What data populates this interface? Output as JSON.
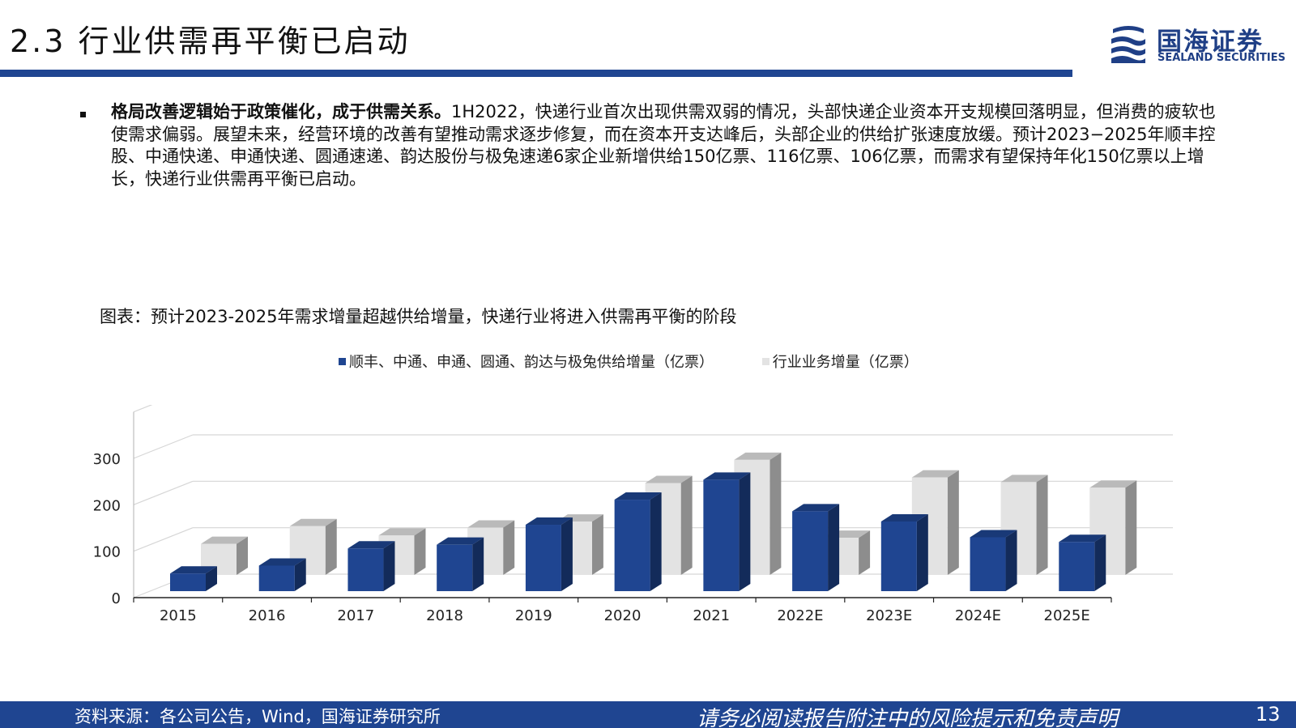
{
  "header": {
    "title": "2.3 行业供需再平衡已启动",
    "logo_cn": "国海证券",
    "logo_en": "SEALAND SECURITIES"
  },
  "bullet": {
    "bold": "格局改善逻辑始于政策催化，成于供需关系。",
    "text": "1H2022，快递行业首次出现供需双弱的情况，头部快递企业资本开支规模回落明显，但消费的疲软也使需求偏弱。展望未来，经营环境的改善有望推动需求逐步修复，而在资本开支达峰后，头部企业的供给扩张速度放缓。预计2023−2025年顺丰控股、中通快递、申通快递、圆通速递、韵达股份与极兔速递6家企业新增供给150亿票、116亿票、106亿票，而需求有望保持年化150亿票以上增长，快递行业供需再平衡已启动。"
  },
  "chart_caption": "图表：预计2023-2025年需求增量超越供给增量，快递行业将进入供需再平衡的阶段",
  "chart_data": {
    "type": "bar",
    "categories": [
      "2015",
      "2016",
      "2017",
      "2018",
      "2019",
      "2020",
      "2021",
      "2022E",
      "2023E",
      "2024E",
      "2025E"
    ],
    "series": [
      {
        "name": "顺丰、中通、申通、圆通、韵达与极兔供给增量（亿票）",
        "values": [
          38,
          55,
          92,
          100,
          143,
          197,
          240,
          172,
          150,
          116,
          106
        ],
        "color": "#1f4591"
      },
      {
        "name": "行业业务增量（亿票）",
        "values": [
          67,
          105,
          85,
          102,
          115,
          198,
          248,
          80,
          210,
          200,
          188
        ],
        "color": "#e3e3e3"
      }
    ],
    "ylim": [
      0,
      300
    ],
    "yticks": [
      "0",
      "100",
      "200",
      "300"
    ],
    "grid": true,
    "legend_position": "top",
    "three_d": true
  },
  "footer": {
    "source": "资料来源：各公司公告，Wind，国海证券研究所",
    "disclaimer": "请务必阅读报告附注中的风险提示和免责声明",
    "page": "13"
  }
}
